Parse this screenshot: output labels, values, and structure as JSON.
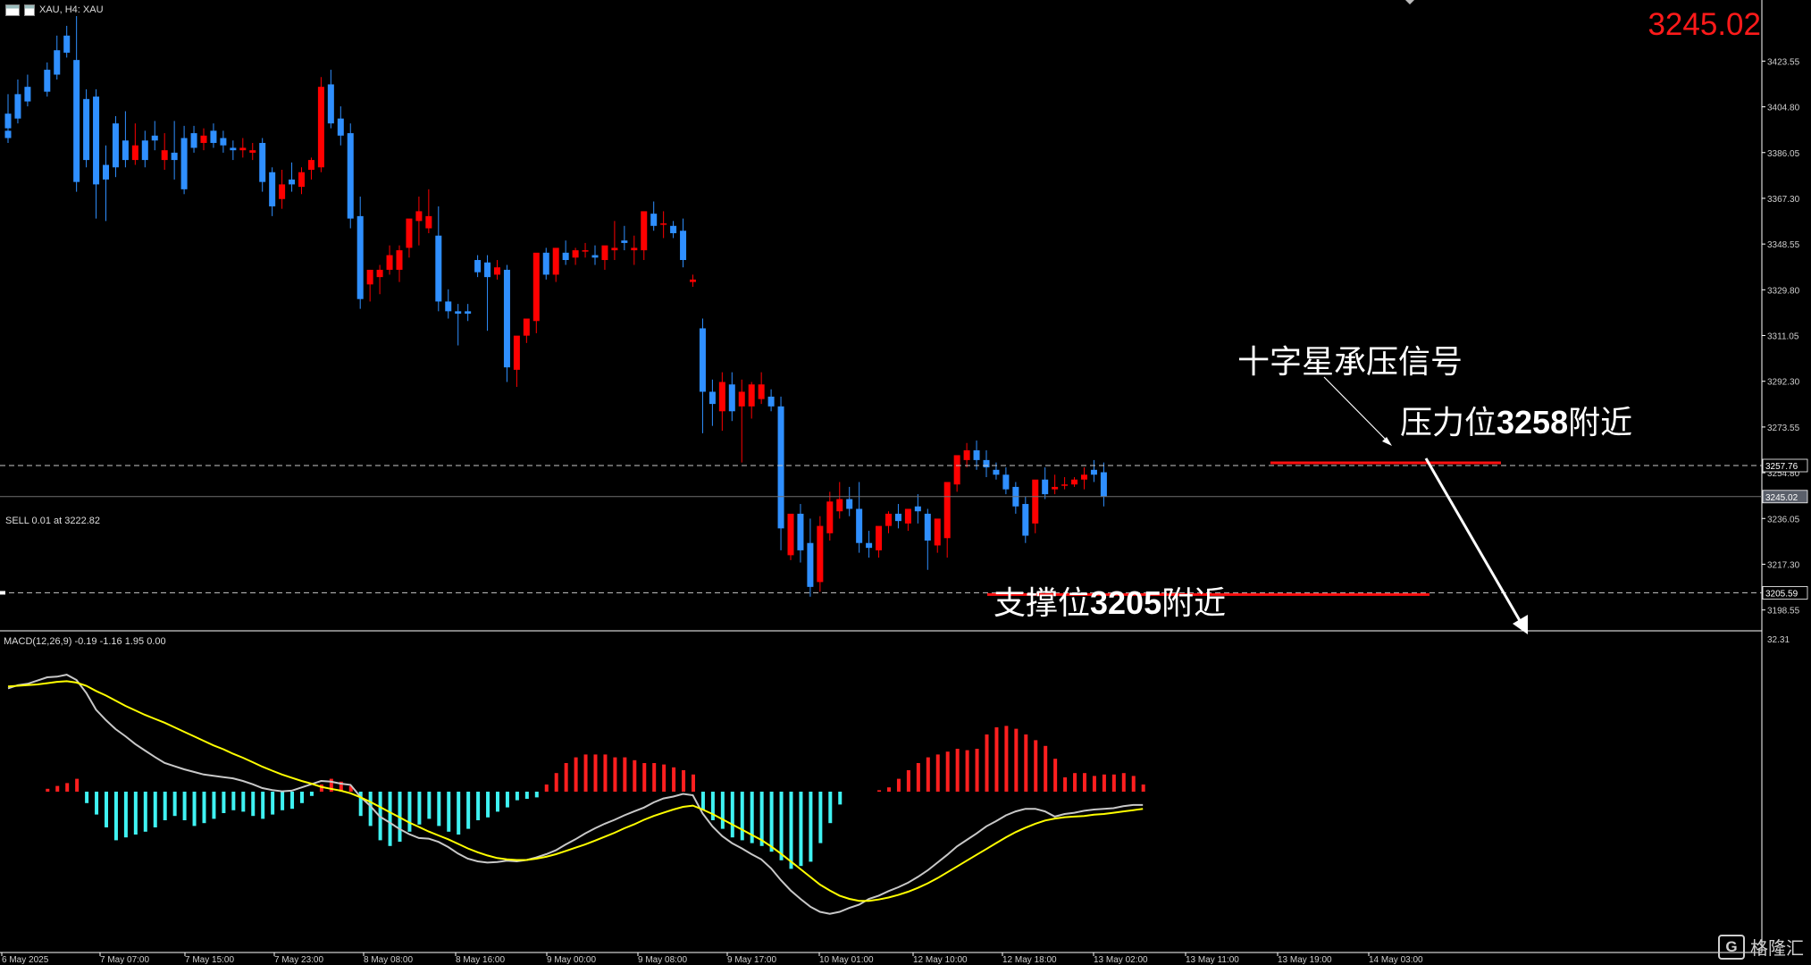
{
  "header": {
    "symbol_label": "XAU, H4: XAU",
    "current_price": "3245.02"
  },
  "order_label": "SELL 0.01 at 3222.82",
  "macd_label": "MACD(12,26,9) -0.19 -1.16 1.95 0.00",
  "annotations": {
    "doji_cn": "十字星承压信号",
    "resist_cn_pre": "压力位",
    "resist_num": "3258",
    "resist_cn_post": "附近",
    "support_cn_pre": "支撑位",
    "support_num": "3205",
    "support_cn_post": "附近"
  },
  "watermark": {
    "icon": "G",
    "text": "格隆汇"
  },
  "colors": {
    "up": "#ff0000",
    "down": "#2f8fff",
    "hist_pos": "#ff1f1f",
    "hist_neg": "#3ff2f2",
    "macd_line": "#c8c8c8",
    "signal_line": "#ffff00"
  },
  "chart_data": [
    {
      "type": "candlestick",
      "title": "XAU, H4",
      "ylim": [
        3190,
        3442
      ],
      "y_ticks": [
        "3423.55",
        "3404.80",
        "3386.05",
        "3367.30",
        "3348.55",
        "3329.80",
        "3311.05",
        "3292.30",
        "3273.55",
        "3254.80",
        "3236.05",
        "3217.30",
        "3198.55"
      ],
      "price_tags": [
        {
          "label": "3257.76",
          "value": 3257.76
        },
        {
          "label": "3245.02",
          "value": 3245.02
        },
        {
          "label": "3205.59",
          "value": 3205.59
        }
      ],
      "x_ticks": [
        "6 May 2025",
        "7 May 07:00",
        "7 May 15:00",
        "7 May 23:00",
        "8 May 08:00",
        "8 May 16:00",
        "9 May 00:00",
        "9 May 08:00",
        "9 May 17:00",
        "10 May 01:00",
        "12 May 10:00",
        "12 May 18:00",
        "13 May 02:00",
        "13 May 11:00",
        "13 May 19:00",
        "14 May 03:00"
      ],
      "resistance": 3257.76,
      "support": 3205.59,
      "candles": [
        [
          3395,
          3400,
          3392,
          3390,
          0
        ],
        [
          3402,
          3410,
          3396,
          3394,
          0
        ],
        [
          3410,
          3416,
          3400,
          3398,
          1
        ],
        [
          3413,
          3418,
          3407,
          3405,
          2
        ],
        [
          3420,
          3423,
          3411,
          3409,
          4
        ],
        [
          3428,
          3434,
          3418,
          3416,
          5
        ],
        [
          3434,
          3438,
          3427,
          3425,
          6
        ],
        [
          3424,
          3442,
          3374,
          3370,
          7
        ],
        [
          3408,
          3412,
          3383,
          3380,
          8
        ],
        [
          3409,
          3412,
          3373,
          3359,
          9
        ],
        [
          3381,
          3389,
          3375,
          3358,
          10
        ],
        [
          3398,
          3401,
          3380,
          3376,
          11
        ],
        [
          3391,
          3403,
          3383,
          3380,
          12
        ],
        [
          3383,
          3398,
          3389,
          3381,
          13
        ],
        [
          3391,
          3395,
          3383,
          3380,
          14
        ],
        [
          3393,
          3399,
          3391,
          3387,
          15
        ],
        [
          3383,
          3394,
          3387,
          3379,
          16
        ],
        [
          3386,
          3399,
          3383,
          3375,
          17
        ],
        [
          3392,
          3397,
          3371,
          3369,
          18
        ],
        [
          3394,
          3397,
          3388,
          3386,
          19
        ],
        [
          3390,
          3396,
          3393,
          3387,
          20
        ],
        [
          3395,
          3398,
          3390,
          3388,
          21
        ],
        [
          3392,
          3395,
          3389,
          3386,
          22
        ],
        [
          3388,
          3391,
          3387,
          3383,
          23
        ],
        [
          3387,
          3392,
          3388,
          3384,
          24
        ],
        [
          3386,
          3390,
          3387,
          3383,
          25
        ],
        [
          3390,
          3392,
          3374,
          3370,
          26
        ],
        [
          3378,
          3380,
          3364,
          3360,
          27
        ],
        [
          3367,
          3379,
          3373,
          3363,
          28
        ],
        [
          3375,
          3382,
          3373,
          3370,
          29
        ],
        [
          3372,
          3380,
          3378,
          3369,
          30
        ],
        [
          3379,
          3384,
          3383,
          3375,
          31
        ],
        [
          3380,
          3417,
          3413,
          3378,
          32
        ],
        [
          3414,
          3420,
          3398,
          3396,
          33
        ],
        [
          3400,
          3405,
          3393,
          3389,
          34
        ],
        [
          3394,
          3398,
          3359,
          3355,
          35
        ],
        [
          3360,
          3368,
          3326,
          3322,
          36
        ],
        [
          3332,
          3338,
          3338,
          3325,
          37
        ],
        [
          3335,
          3340,
          3338,
          3328,
          38
        ],
        [
          3338,
          3348,
          3344,
          3336,
          39
        ],
        [
          3338,
          3348,
          3346,
          3333,
          40
        ],
        [
          3347,
          3358,
          3359,
          3343,
          41
        ],
        [
          3358,
          3368,
          3362,
          3348,
          42
        ],
        [
          3355,
          3371,
          3360,
          3353,
          43
        ],
        [
          3352,
          3364,
          3325,
          3321,
          44
        ],
        [
          3325,
          3330,
          3321,
          3318,
          45
        ],
        [
          3321,
          3324,
          3320,
          3307,
          46
        ],
        [
          3321,
          3324,
          3320,
          3317,
          47
        ],
        [
          3342,
          3344,
          3337,
          3335,
          48
        ],
        [
          3341,
          3344,
          3335,
          3313,
          49
        ],
        [
          3336,
          3342,
          3339,
          3334,
          50
        ],
        [
          3338,
          3340,
          3298,
          3292,
          51
        ],
        [
          3297,
          3305,
          3311,
          3290,
          52
        ],
        [
          3311,
          3314,
          3318,
          3308,
          53
        ],
        [
          3317,
          3321,
          3345,
          3312,
          54
        ],
        [
          3345,
          3347,
          3336,
          3334,
          55
        ],
        [
          3336,
          3340,
          3347,
          3333,
          56
        ],
        [
          3345,
          3350,
          3342,
          3340,
          57
        ],
        [
          3343,
          3347,
          3346,
          3340,
          58
        ],
        [
          3346,
          3349,
          3346,
          3343,
          59
        ],
        [
          3344,
          3348,
          3343,
          3340,
          60
        ],
        [
          3342,
          3347,
          3348,
          3338,
          61
        ],
        [
          3346,
          3358,
          3347,
          3342,
          62
        ],
        [
          3350,
          3356,
          3349,
          3346,
          63
        ],
        [
          3346,
          3352,
          3347,
          3340,
          64
        ],
        [
          3346,
          3352,
          3362,
          3342,
          65
        ],
        [
          3361,
          3366,
          3356,
          3354,
          66
        ],
        [
          3357,
          3362,
          3357,
          3351,
          67
        ],
        [
          3356,
          3358,
          3353,
          3351,
          68
        ],
        [
          3354,
          3359,
          3342,
          3339,
          69
        ],
        [
          3333,
          3336,
          3334,
          3331,
          70
        ],
        [
          3314,
          3318,
          3288,
          3271,
          71
        ],
        [
          3288,
          3293,
          3283,
          3274,
          72
        ],
        [
          3280,
          3296,
          3292,
          3272,
          73
        ],
        [
          3291,
          3296,
          3280,
          3276,
          74
        ],
        [
          3282,
          3293,
          3288,
          3259,
          75
        ],
        [
          3282,
          3292,
          3291,
          3277,
          76
        ],
        [
          3285,
          3296,
          3291,
          3283,
          77
        ],
        [
          3286,
          3289,
          3282,
          3280,
          78
        ],
        [
          3282,
          3286,
          3232,
          3223,
          79
        ],
        [
          3221,
          3229,
          3238,
          3219,
          80
        ],
        [
          3238,
          3242,
          3223,
          3218,
          81
        ],
        [
          3226,
          3236,
          3208,
          3204,
          82
        ],
        [
          3210,
          3237,
          3233,
          3206,
          83
        ],
        [
          3230,
          3247,
          3243,
          3227,
          84
        ],
        [
          3239,
          3251,
          3244,
          3236,
          85
        ],
        [
          3244,
          3249,
          3240,
          3237,
          86
        ],
        [
          3240,
          3251,
          3226,
          3222,
          87
        ],
        [
          3226,
          3231,
          3224,
          3220,
          88
        ],
        [
          3223,
          3232,
          3233,
          3220,
          89
        ],
        [
          3233,
          3239,
          3238,
          3230,
          90
        ],
        [
          3238,
          3242,
          3235,
          3232,
          91
        ],
        [
          3234,
          3240,
          3240,
          3231,
          92
        ],
        [
          3241,
          3246,
          3239,
          3234,
          93
        ],
        [
          3238,
          3240,
          3227,
          3215,
          94
        ],
        [
          3225,
          3230,
          3236,
          3222,
          95
        ],
        [
          3228,
          3246,
          3251,
          3220,
          96
        ],
        [
          3250,
          3258,
          3262,
          3247,
          97
        ],
        [
          3260,
          3267,
          3264,
          3257,
          98
        ],
        [
          3264,
          3268,
          3260,
          3256,
          99
        ],
        [
          3260,
          3264,
          3257,
          3253,
          100
        ],
        [
          3256,
          3259,
          3254,
          3252,
          101
        ],
        [
          3254,
          3257,
          3248,
          3246,
          102
        ],
        [
          3249,
          3251,
          3241,
          3238,
          103
        ],
        [
          3242,
          3245,
          3229,
          3226,
          104
        ],
        [
          3234,
          3243,
          3252,
          3230,
          105
        ],
        [
          3252,
          3257,
          3246,
          3244,
          106
        ],
        [
          3248,
          3254,
          3249,
          3246,
          107
        ],
        [
          3250,
          3253,
          3250,
          3248,
          108
        ],
        [
          3250,
          3253,
          3252,
          3249,
          109
        ],
        [
          3252,
          3257,
          3254,
          3248,
          110
        ],
        [
          3256,
          3260,
          3254,
          3251,
          111
        ],
        [
          3255,
          3259,
          3245,
          3241,
          112
        ]
      ]
    },
    {
      "type": "macd",
      "params": "MACD(12,26,9)",
      "ylim": [
        -8,
        4.5
      ],
      "y_ticks": [
        "32.31"
      ],
      "histogram": [
        0,
        0,
        0,
        0,
        0.2,
        0.4,
        0.6,
        0.9,
        -0.8,
        -1.6,
        -2.5,
        -3.4,
        -3.2,
        -3.0,
        -2.8,
        -2.5,
        -2.0,
        -1.7,
        -2.0,
        -2.4,
        -2.2,
        -1.9,
        -1.5,
        -1.3,
        -1.4,
        -1.7,
        -1.9,
        -1.6,
        -1.3,
        -1.2,
        -0.8,
        -0.3,
        0.5,
        0.9,
        0.7,
        0.4,
        -1.7,
        -2.4,
        -3.4,
        -3.8,
        -3.5,
        -2.8,
        -2.3,
        -1.9,
        -2.4,
        -2.8,
        -3.0,
        -2.6,
        -2.0,
        -1.8,
        -1.4,
        -1.1,
        -0.6,
        -0.5,
        -0.4,
        0.5,
        1.3,
        2.0,
        2.4,
        2.6,
        2.6,
        2.6,
        2.4,
        2.4,
        2.2,
        2.0,
        2.0,
        1.9,
        1.7,
        1.5,
        1.2,
        -1.3,
        -2.0,
        -2.6,
        -3.2,
        -3.4,
        -3.6,
        -3.8,
        -4.2,
        -4.8,
        -5.4,
        -5.2,
        -4.9,
        -3.6,
        -2.2,
        -0.9,
        0,
        0,
        0,
        0.1,
        0.3,
        0.9,
        1.5,
        2.0,
        2.4,
        2.6,
        2.8,
        3.0,
        2.9,
        3.0,
        4.0,
        4.5,
        4.6,
        4.4,
        4.0,
        3.6,
        3.2,
        2.3,
        1.0,
        1.3,
        1.3,
        1.1,
        1.2,
        1.2,
        1.3,
        1.1,
        0.5
      ],
      "macd_line": [
        8.5,
        9.0,
        9.2,
        9.7,
        10.2,
        10.3,
        10.6,
        9.8,
        7.8,
        5.2,
        3.6,
        2.2,
        1.1,
        -0.1,
        -1.1,
        -2.1,
        -3.0,
        -3.5,
        -4.0,
        -4.4,
        -4.8,
        -5.0,
        -5.2,
        -5.4,
        -5.8,
        -6.3,
        -6.9,
        -7.2,
        -7.4,
        -7.3,
        -6.8,
        -6.3,
        -5.8,
        -5.9,
        -6.2,
        -6.4,
        -8.2,
        -9.6,
        -11.3,
        -12.2,
        -13.2,
        -14.0,
        -14.6,
        -14.7,
        -15.2,
        -16.0,
        -17.0,
        -17.8,
        -18.2,
        -18.4,
        -18.3,
        -18.1,
        -18.2,
        -18.0,
        -17.6,
        -17.1,
        -16.5,
        -15.6,
        -14.8,
        -13.9,
        -13.1,
        -12.4,
        -11.8,
        -11.1,
        -10.5,
        -9.9,
        -9.1,
        -8.5,
        -8.2,
        -7.8,
        -8.0,
        -10.8,
        -12.8,
        -14.3,
        -15.4,
        -16.2,
        -17.1,
        -17.9,
        -19.3,
        -21.1,
        -22.7,
        -24.0,
        -25.2,
        -26.0,
        -26.3,
        -26.0,
        -25.4,
        -24.9,
        -24.0,
        -23.5,
        -22.8,
        -22.2,
        -21.5,
        -20.6,
        -19.6,
        -18.4,
        -17.2,
        -15.9,
        -14.9,
        -13.9,
        -12.8,
        -12.0,
        -11.1,
        -10.5,
        -10.1,
        -10.1,
        -10.5,
        -11.3,
        -10.9,
        -10.7,
        -10.4,
        -10.2,
        -10.1,
        -10.0,
        -9.7,
        -9.5,
        -9.5
      ],
      "signal_line": [
        8.8,
        8.9,
        9.0,
        9.1,
        9.3,
        9.5,
        9.6,
        9.4,
        8.9,
        8.1,
        7.4,
        6.6,
        5.8,
        5.1,
        4.4,
        3.8,
        3.2,
        2.5,
        1.8,
        1.1,
        0.4,
        -0.3,
        -0.9,
        -1.6,
        -2.2,
        -2.9,
        -3.6,
        -4.2,
        -4.8,
        -5.3,
        -5.8,
        -6.2,
        -6.7,
        -7.0,
        -7.3,
        -7.7,
        -8.3,
        -9.0,
        -9.8,
        -10.6,
        -11.4,
        -12.2,
        -12.9,
        -13.6,
        -14.2,
        -14.8,
        -15.5,
        -16.2,
        -16.8,
        -17.3,
        -17.7,
        -17.9,
        -18.0,
        -18.0,
        -17.8,
        -17.5,
        -17.1,
        -16.6,
        -16.1,
        -15.6,
        -15.0,
        -14.4,
        -13.8,
        -13.1,
        -12.5,
        -11.8,
        -11.2,
        -10.7,
        -10.2,
        -9.8,
        -9.6,
        -10.2,
        -10.9,
        -11.7,
        -12.5,
        -13.3,
        -14.1,
        -14.9,
        -15.9,
        -17.0,
        -18.2,
        -19.4,
        -20.6,
        -21.8,
        -22.7,
        -23.5,
        -24.0,
        -24.3,
        -24.3,
        -24.1,
        -23.8,
        -23.4,
        -22.9,
        -22.3,
        -21.6,
        -20.8,
        -19.9,
        -19.0,
        -18.1,
        -17.2,
        -16.3,
        -15.4,
        -14.5,
        -13.7,
        -13.0,
        -12.4,
        -11.9,
        -11.6,
        -11.4,
        -11.3,
        -11.2,
        -11.0,
        -10.9,
        -10.7,
        -10.5,
        -10.3,
        -10.1
      ],
      "line_scale": [
        -28,
        12
      ]
    }
  ]
}
